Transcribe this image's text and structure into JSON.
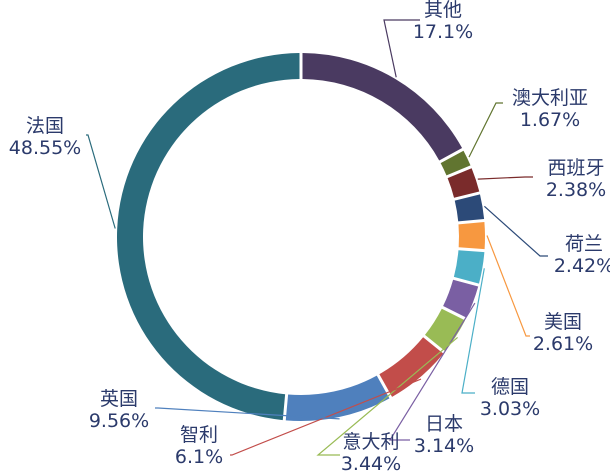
{
  "chart_data": {
    "type": "pie",
    "variant": "donut",
    "unit": "%",
    "start_angle_deg": 0,
    "direction": "clockwise",
    "slices": [
      {
        "name": "其他",
        "value": 17.1,
        "value_label": "17.1%",
        "color": "#4a3a61"
      },
      {
        "name": "澳大利亚",
        "value": 1.67,
        "value_label": "1.67%",
        "color": "#617530"
      },
      {
        "name": "西班牙",
        "value": 2.38,
        "value_label": "2.38%",
        "color": "#7a2b2b"
      },
      {
        "name": "荷兰",
        "value": 2.42,
        "value_label": "2.42%",
        "color": "#2c4a78"
      },
      {
        "name": "美国",
        "value": 2.61,
        "value_label": "2.61%",
        "color": "#f79840"
      },
      {
        "name": "德国",
        "value": 3.03,
        "value_label": "3.03%",
        "color": "#4bafc7"
      },
      {
        "name": "日本",
        "value": 3.14,
        "value_label": "3.14%",
        "color": "#7a5fa3"
      },
      {
        "name": "意大利",
        "value": 3.44,
        "value_label": "3.44%",
        "color": "#99bb55"
      },
      {
        "name": "智利",
        "value": 6.1,
        "value_label": "6.1%",
        "color": "#c24d4a"
      },
      {
        "name": "英国",
        "value": 9.56,
        "value_label": "9.56%",
        "color": "#4f80bd"
      },
      {
        "name": "法国",
        "value": 48.55,
        "value_label": "48.55%",
        "color": "#2a6b7c"
      }
    ]
  }
}
